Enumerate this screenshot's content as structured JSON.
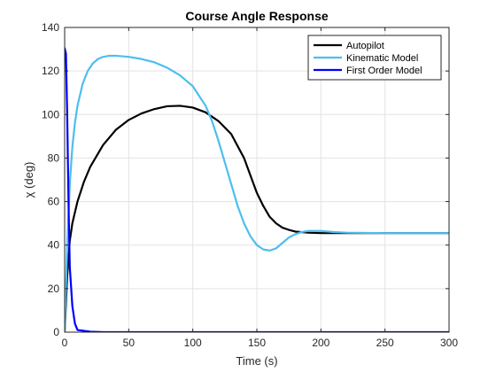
{
  "chart_data": {
    "type": "line",
    "title": "Course Angle Response",
    "xlabel": "Time (s)",
    "ylabel": "χ (deg)",
    "xlim": [
      0,
      300
    ],
    "ylim": [
      0,
      140
    ],
    "xticks": [
      0,
      50,
      100,
      150,
      200,
      250,
      300
    ],
    "yticks": [
      0,
      20,
      40,
      60,
      80,
      100,
      120,
      140
    ],
    "grid": true,
    "legend_position": "top-right",
    "series": [
      {
        "name": "Autopilot",
        "color": "#000000",
        "x": [
          0,
          2,
          4,
          6,
          10,
          15,
          20,
          30,
          40,
          50,
          60,
          70,
          80,
          90,
          100,
          110,
          120,
          130,
          140,
          145,
          150,
          155,
          160,
          165,
          170,
          175,
          180,
          190,
          200,
          220,
          250,
          300
        ],
        "y": [
          0,
          26,
          42,
          50,
          60,
          69,
          76,
          86,
          93,
          97.5,
          100.5,
          102.5,
          103.8,
          104,
          103.2,
          101,
          97,
          91,
          80,
          72,
          64,
          58,
          53,
          50,
          48,
          47,
          46.2,
          45.7,
          45.5,
          45.5,
          45.5,
          45.5
        ]
      },
      {
        "name": "Kinematic Model",
        "color": "#4dbeee",
        "x": [
          0,
          2,
          4,
          6,
          8,
          10,
          14,
          18,
          22,
          26,
          30,
          35,
          40,
          50,
          60,
          70,
          80,
          90,
          100,
          110,
          115,
          120,
          125,
          130,
          135,
          140,
          145,
          150,
          155,
          160,
          165,
          170,
          175,
          180,
          185,
          190,
          200,
          210,
          220,
          250,
          300
        ],
        "y": [
          0,
          40,
          68,
          85,
          96,
          104,
          114,
          120,
          123.5,
          125.5,
          126.5,
          127,
          127,
          126.5,
          125.5,
          124,
          121.5,
          118,
          113,
          104,
          97,
          88,
          78,
          68,
          58,
          50,
          44,
          40,
          38,
          37.5,
          38.5,
          41,
          43.5,
          45,
          46,
          46.5,
          46.5,
          46,
          45.7,
          45.5,
          45.5
        ]
      },
      {
        "name": "First Order Model",
        "color": "#0000ff",
        "x": [
          0,
          1,
          2,
          3,
          4,
          6,
          8,
          10,
          20,
          30,
          40,
          50,
          60,
          70,
          80,
          90,
          95,
          100,
          105,
          110,
          115,
          120,
          125,
          130,
          135,
          140,
          145,
          150,
          160,
          170,
          180,
          200,
          250,
          300
        ],
        "y": [
          130.5,
          128,
          100,
          60,
          30,
          12,
          4,
          1,
          0.2,
          0,
          0,
          0,
          0,
          0,
          0,
          0,
          0,
          0,
          0,
          0,
          0,
          0,
          0,
          0,
          0,
          0,
          0,
          0,
          0,
          0,
          0,
          0,
          0,
          0
        ]
      }
    ]
  }
}
